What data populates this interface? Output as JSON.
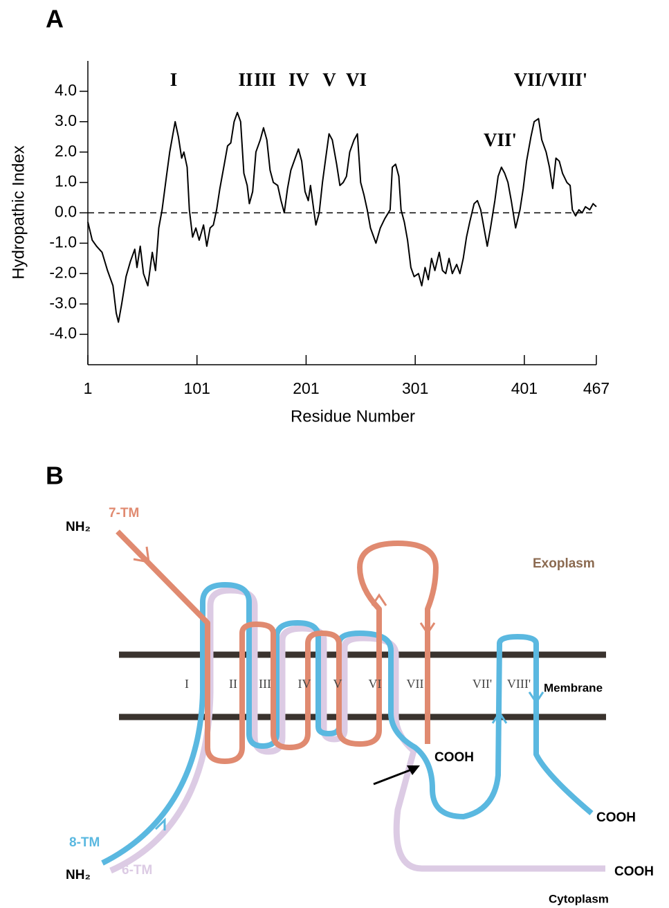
{
  "panel_a": {
    "label": "A"
  },
  "chart_data": {
    "type": "line",
    "ylabel": "Hydropathic Index",
    "xlabel": "Residue Number",
    "annotations": [
      "I",
      "II",
      "III",
      "IV",
      "V",
      "VI",
      "VII/VIII'",
      "VII'"
    ],
    "xlim": [
      1,
      467
    ],
    "xticks": [
      1,
      101,
      201,
      301,
      401,
      467
    ],
    "ylim": [
      -5,
      5
    ],
    "yticks": [
      {
        "value": 4,
        "label": "4.0"
      },
      {
        "value": 3,
        "label": "3.0"
      },
      {
        "value": 2,
        "label": "2.0"
      },
      {
        "value": 1,
        "label": "1.0"
      },
      {
        "value": 0,
        "label": "0.0"
      },
      {
        "value": -1,
        "label": "-1.0"
      },
      {
        "value": -2,
        "label": "-2.0"
      },
      {
        "value": -3,
        "label": "-3.0"
      },
      {
        "value": -4,
        "label": "-4.0"
      }
    ],
    "reference_line": 0,
    "color": "#000000",
    "x": [
      1,
      5,
      9,
      14,
      19,
      24,
      27,
      29,
      32,
      36,
      40,
      44,
      46,
      49,
      52,
      56,
      60,
      63,
      66,
      69,
      73,
      76,
      79,
      81,
      84,
      87,
      89,
      92,
      94,
      97,
      100,
      103,
      107,
      110,
      113,
      116,
      119,
      122,
      126,
      129,
      132,
      135,
      138,
      141,
      144,
      147,
      149,
      152,
      155,
      159,
      162,
      165,
      168,
      171,
      175,
      178,
      181,
      184,
      187,
      190,
      194,
      197,
      200,
      203,
      205,
      208,
      210,
      213,
      216,
      219,
      222,
      225,
      229,
      232,
      235,
      238,
      241,
      245,
      248,
      251,
      254,
      257,
      260,
      265,
      269,
      273,
      278,
      280,
      283,
      286,
      288,
      291,
      294,
      297,
      300,
      304,
      307,
      310,
      313,
      316,
      319,
      323,
      326,
      329,
      332,
      335,
      339,
      342,
      345,
      348,
      351,
      355,
      358,
      361,
      363,
      367,
      370,
      374,
      377,
      380,
      383,
      386,
      389,
      393,
      397,
      400,
      403,
      407,
      410,
      414,
      417,
      421,
      424,
      427,
      430,
      433,
      436,
      440,
      443,
      445,
      448,
      451,
      454,
      457,
      461,
      464,
      467
    ],
    "values": [
      -0.3,
      -0.9,
      -1.1,
      -1.3,
      -1.9,
      -2.4,
      -3.3,
      -3.6,
      -3.0,
      -2.1,
      -1.6,
      -1.2,
      -1.8,
      -1.1,
      -2.0,
      -2.4,
      -1.3,
      -1.9,
      -0.5,
      0.1,
      1.2,
      2.0,
      2.6,
      3.0,
      2.5,
      1.8,
      2.0,
      1.5,
      0.1,
      -0.8,
      -0.5,
      -0.9,
      -0.4,
      -1.1,
      -0.5,
      -0.4,
      0.1,
      0.8,
      1.6,
      2.2,
      2.3,
      3.0,
      3.3,
      3.0,
      1.3,
      0.9,
      0.3,
      0.7,
      2.0,
      2.4,
      2.8,
      2.4,
      1.4,
      1.0,
      0.9,
      0.4,
      0,
      0.8,
      1.4,
      1.7,
      2.1,
      1.7,
      0.7,
      0.4,
      0.9,
      0.1,
      -0.4,
      0,
      1.0,
      1.8,
      2.6,
      2.4,
      1.6,
      0.9,
      1.0,
      1.2,
      2.0,
      2.4,
      2.6,
      1.0,
      0.6,
      0.1,
      -0.5,
      -1.0,
      -0.5,
      -0.2,
      0.1,
      1.5,
      1.6,
      1.2,
      0.1,
      -0.3,
      -0.9,
      -1.8,
      -2.1,
      -2.0,
      -2.4,
      -1.8,
      -2.2,
      -1.5,
      -1.9,
      -1.3,
      -1.9,
      -2.0,
      -1.5,
      -2.0,
      -1.7,
      -2.0,
      -1.5,
      -0.8,
      -0.3,
      0.3,
      0.4,
      0.1,
      -0.3,
      -1.1,
      -0.5,
      0.4,
      1.2,
      1.5,
      1.3,
      1.0,
      0.4,
      -0.5,
      0.1,
      0.8,
      1.7,
      2.5,
      3.0,
      3.1,
      2.4,
      2.0,
      1.5,
      0.8,
      1.8,
      1.7,
      1.3,
      1.0,
      0.9,
      0.1,
      -0.1,
      0.1,
      0,
      0.2,
      0.1,
      0.3,
      0.2
    ]
  },
  "panel_b": {
    "label": "B",
    "nh2_top": "NH₂",
    "tm7": "7-TM",
    "exoplasm": "Exoplasm",
    "segments": [
      "I",
      "II",
      "III",
      "IV",
      "V",
      "VI",
      "VII",
      "VII'",
      "VIII'"
    ],
    "membrane": "Membrane",
    "cooh_7tm": "COOH",
    "cooh_8tm": "COOH",
    "cooh_6tm": "COOH",
    "tm8": "8-TM",
    "tm6": "6-TM",
    "nh2_bottom": "NH₂",
    "cytoplasm": "Cytoplasm"
  }
}
